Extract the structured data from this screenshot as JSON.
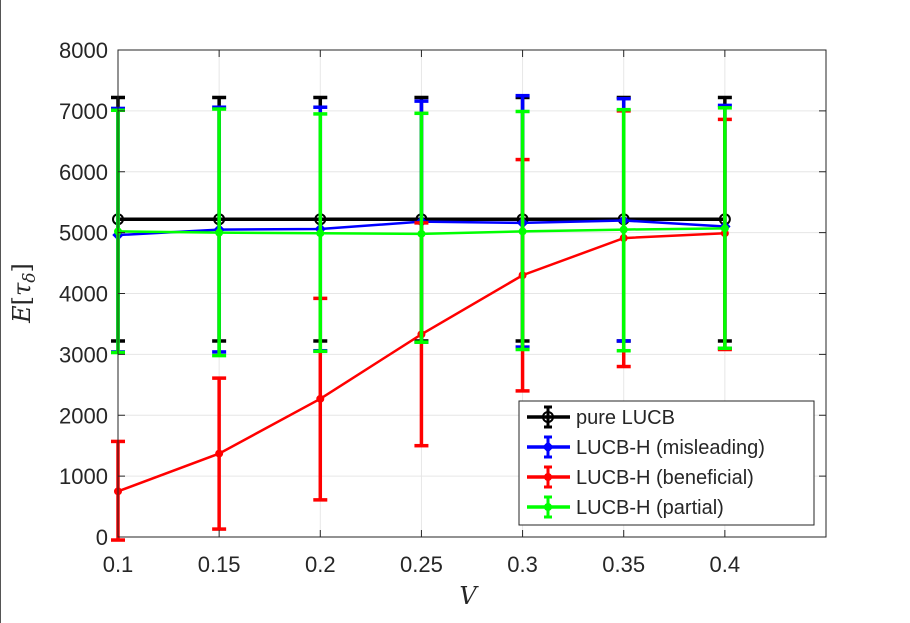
{
  "chart_data": {
    "type": "line",
    "xlabel": "V",
    "ylabel_main": "E",
    "ylabel_open": "[",
    "ylabel_var": "τ",
    "ylabel_sub": "δ",
    "ylabel_close": "]",
    "x": [
      0.1,
      0.15,
      0.2,
      0.25,
      0.3,
      0.35,
      0.4
    ],
    "x_tick_labels": [
      "0.1",
      "0.15",
      "0.2",
      "0.25",
      "0.3",
      "0.35",
      "0.4"
    ],
    "y_tick_labels": [
      "0",
      "1000",
      "2000",
      "3000",
      "4000",
      "5000",
      "6000",
      "7000",
      "8000"
    ],
    "xlim": [
      0.1,
      0.45
    ],
    "ylim": [
      0,
      8000
    ],
    "grid": true,
    "legend_position": "bottom-right",
    "series": [
      {
        "name": "pure LUCB",
        "color": "#000000",
        "marker": "circle",
        "values": [
          5220,
          5220,
          5220,
          5220,
          5220,
          5220,
          5220
        ],
        "err_low": [
          3220,
          3220,
          3220,
          3220,
          3220,
          3220,
          3220
        ],
        "err_high": [
          7220,
          7220,
          7220,
          7220,
          7220,
          7220,
          7220
        ]
      },
      {
        "name": "LUCB-H (misleading)",
        "color": "#0000ff",
        "marker": "diamond",
        "values": [
          4960,
          5050,
          5060,
          5180,
          5160,
          5200,
          5100
        ],
        "err_low": [
          3040,
          3040,
          3060,
          3200,
          3120,
          3220,
          3100
        ],
        "err_high": [
          7040,
          7060,
          7060,
          7160,
          7250,
          7200,
          7090
        ]
      },
      {
        "name": "LUCB-H (beneficial)",
        "color": "#ff0000",
        "marker": "dot",
        "values": [
          750,
          1370,
          2270,
          3330,
          4300,
          4910,
          4990
        ],
        "err_low": [
          -50,
          130,
          610,
          1500,
          2400,
          2800,
          3080
        ],
        "err_high": [
          1570,
          2610,
          3920,
          5160,
          6200,
          7000,
          6860
        ]
      },
      {
        "name": "LUCB-H (partial)",
        "color": "#00ff00",
        "marker": "dot",
        "values": [
          5020,
          5000,
          4990,
          4980,
          5020,
          5050,
          5070
        ],
        "err_low": [
          3030,
          2980,
          3050,
          3200,
          3080,
          3060,
          3100
        ],
        "err_high": [
          7010,
          7030,
          6950,
          6960,
          6990,
          7020,
          7050
        ]
      }
    ]
  }
}
